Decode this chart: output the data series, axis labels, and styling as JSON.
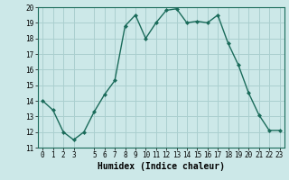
{
  "x": [
    0,
    1,
    2,
    3,
    4,
    5,
    6,
    7,
    8,
    9,
    10,
    11,
    12,
    13,
    14,
    15,
    16,
    17,
    18,
    19,
    20,
    21,
    22,
    23
  ],
  "y": [
    14.0,
    13.4,
    12.0,
    11.5,
    12.0,
    13.3,
    14.4,
    15.3,
    18.8,
    19.5,
    18.0,
    19.0,
    19.8,
    19.9,
    19.0,
    19.1,
    19.0,
    19.5,
    17.7,
    16.3,
    14.5,
    13.1,
    12.1,
    12.1
  ],
  "line_color": "#1a6b5a",
  "marker": "D",
  "marker_size": 2.0,
  "linewidth": 1.0,
  "bg_color": "#cce8e8",
  "grid_color": "#aacfcf",
  "xlabel": "Humidex (Indice chaleur)",
  "ylim": [
    11,
    20
  ],
  "xlim": [
    -0.5,
    23.5
  ],
  "yticks": [
    11,
    12,
    13,
    14,
    15,
    16,
    17,
    18,
    19,
    20
  ],
  "xticks": [
    0,
    1,
    2,
    3,
    5,
    6,
    7,
    8,
    9,
    10,
    11,
    12,
    13,
    14,
    15,
    16,
    17,
    18,
    19,
    20,
    21,
    22,
    23
  ],
  "tick_fontsize": 5.5,
  "xlabel_fontsize": 7.0
}
